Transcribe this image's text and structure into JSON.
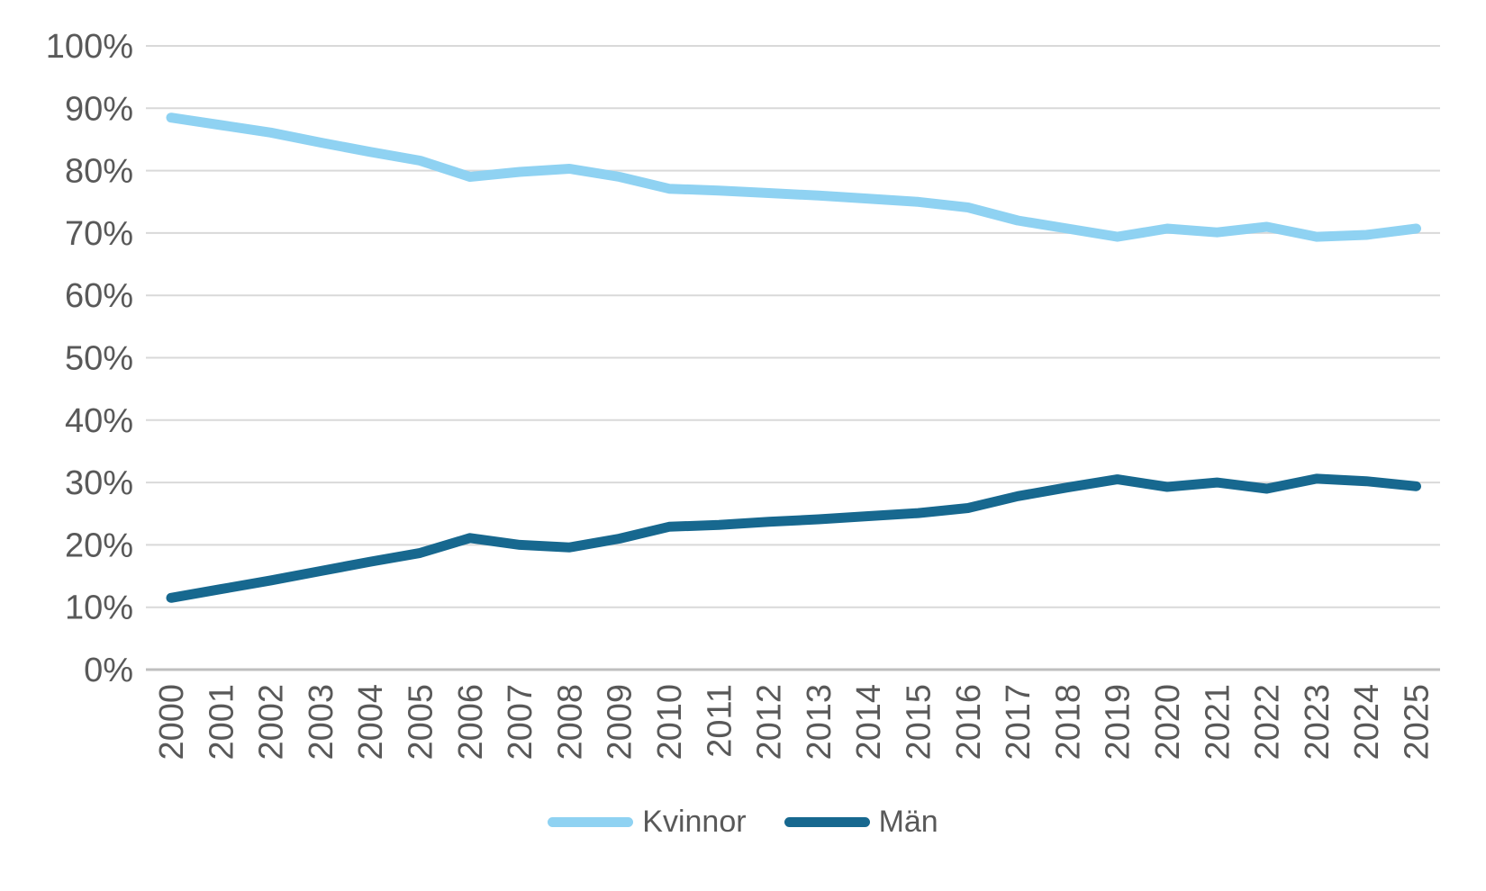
{
  "chart_data": {
    "type": "line",
    "title": "",
    "xlabel": "",
    "ylabel": "",
    "x": [
      2000,
      2001,
      2002,
      2003,
      2004,
      2005,
      2006,
      2007,
      2008,
      2009,
      2010,
      2011,
      2012,
      2013,
      2014,
      2015,
      2016,
      2017,
      2018,
      2019,
      2020,
      2021,
      2022,
      2023,
      2024,
      2025
    ],
    "series": [
      {
        "name": "Kvinnor",
        "color": "#8fd2f2",
        "values": [
          88.5,
          87.3,
          86.1,
          84.5,
          83.0,
          81.6,
          79.0,
          79.8,
          80.3,
          79.0,
          77.1,
          76.8,
          76.4,
          76.0,
          75.5,
          75.0,
          74.1,
          72.0,
          70.7,
          69.4,
          70.7,
          70.1,
          71.0,
          69.4,
          69.7,
          70.7
        ]
      },
      {
        "name": "Män",
        "color": "#17688f",
        "values": [
          11.5,
          12.9,
          14.3,
          15.8,
          17.3,
          18.7,
          21.1,
          20.0,
          19.6,
          21.0,
          22.9,
          23.2,
          23.7,
          24.1,
          24.6,
          25.1,
          25.9,
          27.8,
          29.2,
          30.5,
          29.3,
          30.0,
          29.0,
          30.6,
          30.2,
          29.4
        ]
      }
    ],
    "ylim": [
      0,
      100
    ],
    "y_ticks": [
      0,
      10,
      20,
      30,
      40,
      50,
      60,
      70,
      80,
      90,
      100
    ],
    "y_tick_labels": [
      "0%",
      "10%",
      "20%",
      "30%",
      "40%",
      "50%",
      "60%",
      "70%",
      "80%",
      "90%",
      "100%"
    ],
    "grid": "horizontal",
    "legend_position": "bottom",
    "style": {
      "grid_color": "#d9d9d9",
      "axis_line_color": "#bfbfbf",
      "text_color": "#595959"
    }
  }
}
